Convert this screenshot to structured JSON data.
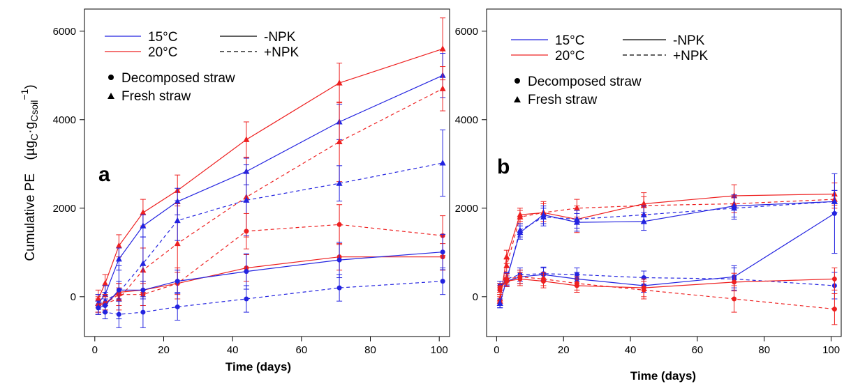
{
  "chart_data": [
    {
      "panel": "a",
      "type": "line",
      "xlabel": "Time (days)",
      "ylabel": "Cumulative PE",
      "ylabel_unit": {
        "open": "(µg",
        "sub1": "C",
        "mid": "·g",
        "sub2": "Csoil",
        "sup": "−1",
        "close": ")"
      },
      "xlim": [
        -3,
        103
      ],
      "ylim": [
        -900,
        6500
      ],
      "xticks": [
        0,
        20,
        40,
        60,
        80,
        100
      ],
      "yticks": [
        0,
        2000,
        4000,
        6000
      ],
      "legend": {
        "temps": [
          {
            "label": "15°C",
            "color": "#2323e0"
          },
          {
            "label": "20°C",
            "color": "#ee2020"
          }
        ],
        "npk": [
          {
            "label": "-NPK",
            "dash": "solid"
          },
          {
            "label": "+NPK",
            "dash": "dashed"
          }
        ],
        "markers": [
          {
            "label": "Decomposed straw",
            "shape": "circle"
          },
          {
            "label": "Fresh straw",
            "shape": "triangle"
          }
        ]
      },
      "series": [
        {
          "temp": "20°C",
          "npk": "-NPK",
          "straw": "Fresh straw",
          "x": [
            1,
            3,
            7,
            14,
            24,
            44,
            71,
            101
          ],
          "y": [
            -50,
            300,
            1150,
            1900,
            2400,
            3550,
            4830,
            5600
          ],
          "err": [
            200,
            200,
            250,
            300,
            350,
            400,
            450,
            700
          ]
        },
        {
          "temp": "15°C",
          "npk": "-NPK",
          "straw": "Fresh straw",
          "x": [
            1,
            3,
            7,
            14,
            24,
            44,
            71,
            101
          ],
          "y": [
            -150,
            50,
            850,
            1600,
            2150,
            2830,
            3950,
            5000
          ],
          "err": [
            200,
            200,
            250,
            250,
            300,
            300,
            400,
            500
          ]
        },
        {
          "temp": "20°C",
          "npk": "+NPK",
          "straw": "Fresh straw",
          "x": [
            1,
            3,
            7,
            14,
            24,
            44,
            71,
            101
          ],
          "y": [
            -150,
            -150,
            -50,
            600,
            1200,
            2250,
            3500,
            4700
          ],
          "err": [
            200,
            200,
            250,
            500,
            900,
            900,
            900,
            500
          ]
        },
        {
          "temp": "15°C",
          "npk": "+NPK",
          "straw": "Fresh straw",
          "x": [
            1,
            3,
            7,
            14,
            24,
            44,
            71,
            101
          ],
          "y": [
            -150,
            -100,
            100,
            750,
            1720,
            2180,
            2560,
            3020
          ],
          "err": [
            200,
            200,
            600,
            600,
            450,
            800,
            400,
            750
          ]
        },
        {
          "temp": "20°C",
          "npk": "+NPK",
          "straw": "Decomposed straw",
          "x": [
            1,
            3,
            7,
            14,
            24,
            44,
            71,
            101
          ],
          "y": [
            -200,
            -150,
            50,
            50,
            300,
            1480,
            1630,
            1380
          ],
          "err": [
            200,
            200,
            250,
            250,
            350,
            400,
            450,
            450
          ]
        },
        {
          "temp": "20°C",
          "npk": "-NPK",
          "straw": "Decomposed straw",
          "x": [
            1,
            3,
            7,
            14,
            24,
            44,
            71,
            101
          ],
          "y": [
            -200,
            -150,
            100,
            150,
            300,
            650,
            900,
            900
          ],
          "err": [
            150,
            150,
            200,
            200,
            250,
            300,
            300,
            300
          ]
        },
        {
          "temp": "15°C",
          "npk": "-NPK",
          "straw": "Decomposed straw",
          "x": [
            1,
            3,
            7,
            14,
            24,
            44,
            71,
            101
          ],
          "y": [
            -250,
            -200,
            150,
            150,
            350,
            570,
            830,
            1010
          ],
          "err": [
            150,
            150,
            200,
            200,
            250,
            400,
            400,
            400
          ]
        },
        {
          "temp": "15°C",
          "npk": "+NPK",
          "straw": "Decomposed straw",
          "x": [
            1,
            3,
            7,
            14,
            24,
            44,
            71,
            101
          ],
          "y": [
            -250,
            -350,
            -400,
            -350,
            -230,
            -50,
            200,
            350
          ],
          "err": [
            150,
            150,
            300,
            350,
            300,
            300,
            300,
            300
          ]
        }
      ]
    },
    {
      "panel": "b",
      "type": "line",
      "xlabel": "Time (days)",
      "xlim": [
        -3,
        103
      ],
      "ylim": [
        -900,
        6500
      ],
      "xticks": [
        0,
        20,
        40,
        60,
        80,
        100
      ],
      "yticks": [
        0,
        2000,
        4000,
        6000
      ],
      "legend": {
        "temps": [
          {
            "label": "15°C",
            "color": "#2323e0"
          },
          {
            "label": "20°C",
            "color": "#ee2020"
          }
        ],
        "npk": [
          {
            "label": "-NPK",
            "dash": "solid"
          },
          {
            "label": "+NPK",
            "dash": "dashed"
          }
        ],
        "markers": [
          {
            "label": "Decomposed straw",
            "shape": "circle"
          },
          {
            "label": "Fresh straw",
            "shape": "triangle"
          }
        ]
      },
      "series": [
        {
          "temp": "20°C",
          "npk": "-NPK",
          "straw": "Fresh straw",
          "x": [
            1,
            3,
            7,
            14,
            24,
            44,
            71,
            101
          ],
          "y": [
            -100,
            900,
            1850,
            1900,
            1750,
            2100,
            2280,
            2320
          ],
          "err": [
            100,
            150,
            150,
            250,
            300,
            250,
            250,
            250
          ]
        },
        {
          "temp": "20°C",
          "npk": "+NPK",
          "straw": "Fresh straw",
          "x": [
            1,
            3,
            7,
            14,
            24,
            44,
            71,
            101
          ],
          "y": [
            -50,
            700,
            1800,
            1900,
            2000,
            2060,
            2100,
            2200
          ],
          "err": [
            100,
            150,
            150,
            200,
            200,
            200,
            200,
            200
          ]
        },
        {
          "temp": "15°C",
          "npk": "-NPK",
          "straw": "Fresh straw",
          "x": [
            1,
            3,
            7,
            14,
            24,
            44,
            71,
            101
          ],
          "y": [
            -150,
            400,
            1450,
            1850,
            1680,
            1700,
            2050,
            2150
          ],
          "err": [
            100,
            150,
            150,
            200,
            200,
            200,
            250,
            250
          ]
        },
        {
          "temp": "15°C",
          "npk": "+NPK",
          "straw": "Fresh straw",
          "x": [
            1,
            3,
            7,
            14,
            24,
            44,
            71,
            101
          ],
          "y": [
            -150,
            380,
            1500,
            1800,
            1750,
            1850,
            2000,
            2150
          ],
          "err": [
            100,
            150,
            150,
            200,
            200,
            200,
            250,
            250
          ]
        },
        {
          "temp": "15°C",
          "npk": "-NPK",
          "straw": "Decomposed straw",
          "x": [
            1,
            3,
            7,
            14,
            24,
            44,
            71,
            101
          ],
          "y": [
            250,
            350,
            450,
            500,
            400,
            250,
            450,
            1880
          ],
          "err": [
            100,
            120,
            150,
            150,
            150,
            150,
            250,
            900
          ]
        },
        {
          "temp": "15°C",
          "npk": "+NPK",
          "straw": "Decomposed straw",
          "x": [
            1,
            3,
            7,
            14,
            24,
            44,
            71,
            101
          ],
          "y": [
            200,
            400,
            500,
            520,
            500,
            430,
            400,
            250
          ],
          "err": [
            100,
            120,
            150,
            150,
            150,
            150,
            250,
            300
          ]
        },
        {
          "temp": "20°C",
          "npk": "-NPK",
          "straw": "Decomposed straw",
          "x": [
            1,
            3,
            7,
            14,
            24,
            44,
            71,
            101
          ],
          "y": [
            200,
            350,
            400,
            350,
            250,
            200,
            330,
            400
          ],
          "err": [
            100,
            120,
            150,
            150,
            150,
            200,
            200,
            250
          ]
        },
        {
          "temp": "20°C",
          "npk": "+NPK",
          "straw": "Decomposed straw",
          "x": [
            1,
            3,
            7,
            14,
            24,
            44,
            71,
            101
          ],
          "y": [
            150,
            400,
            450,
            400,
            300,
            150,
            -50,
            -280
          ],
          "err": [
            100,
            120,
            150,
            150,
            150,
            200,
            300,
            350
          ]
        }
      ]
    }
  ]
}
